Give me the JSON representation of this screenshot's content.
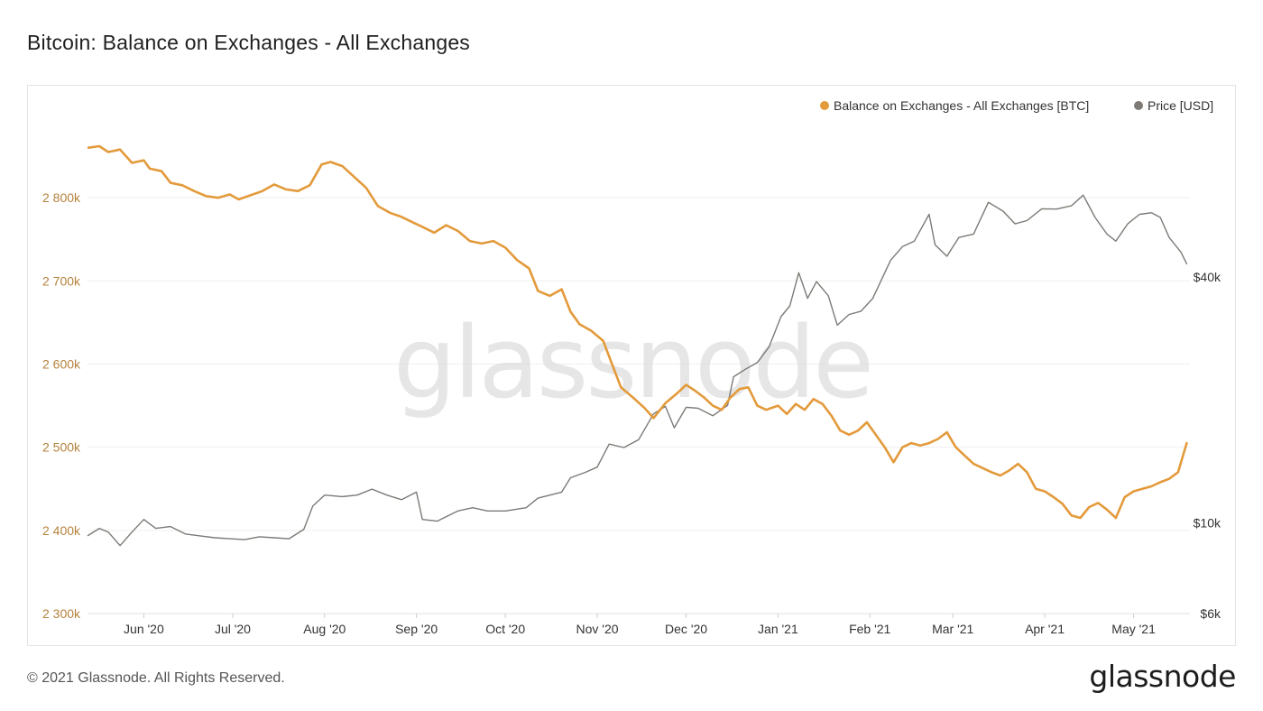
{
  "title": "Bitcoin: Balance on Exchanges - All Exchanges",
  "footer": {
    "copyright": "© 2021 Glassnode. All Rights Reserved.",
    "logo": "glassnode"
  },
  "watermark": "glassnode",
  "colors": {
    "balance": "#e39a3b",
    "price": "#7d7a76",
    "left_axis_text": "#b5823d",
    "grid": "#efefef"
  },
  "chart_data": {
    "type": "line",
    "title": "Bitcoin: Balance on Exchanges - All Exchanges",
    "x_range": [
      "2020-05-13",
      "2021-05-20"
    ],
    "x_ticks": [
      {
        "date": "2020-06-01",
        "label": "Jun '20"
      },
      {
        "date": "2020-07-01",
        "label": "Jul '20"
      },
      {
        "date": "2020-08-01",
        "label": "Aug '20"
      },
      {
        "date": "2020-09-01",
        "label": "Sep '20"
      },
      {
        "date": "2020-10-01",
        "label": "Oct '20"
      },
      {
        "date": "2020-11-01",
        "label": "Nov '20"
      },
      {
        "date": "2020-12-01",
        "label": "Dec '20"
      },
      {
        "date": "2021-01-01",
        "label": "Jan '21"
      },
      {
        "date": "2021-02-01",
        "label": "Feb '21"
      },
      {
        "date": "2021-03-01",
        "label": "Mar '21"
      },
      {
        "date": "2021-04-01",
        "label": "Apr '21"
      },
      {
        "date": "2021-05-01",
        "label": "May '21"
      }
    ],
    "y_left": {
      "range": [
        2300000,
        2900000
      ],
      "ticks": [
        {
          "value": 2300000,
          "label": "2 300k"
        },
        {
          "value": 2400000,
          "label": "2 400k"
        },
        {
          "value": 2500000,
          "label": "2 500k"
        },
        {
          "value": 2600000,
          "label": "2 600k"
        },
        {
          "value": 2700000,
          "label": "2 700k"
        },
        {
          "value": 2800000,
          "label": "2 800k"
        }
      ]
    },
    "y_right": {
      "scale": "log",
      "range": [
        6000,
        100000
      ],
      "ticks": [
        {
          "value": 6000,
          "label": "$6k"
        },
        {
          "value": 10000,
          "label": "$10k"
        },
        {
          "value": 40000,
          "label": "$40k"
        }
      ]
    },
    "grid": true,
    "legend": "top-right",
    "series": [
      {
        "name": "Balance on Exchanges - All Exchanges [BTC]",
        "axis": "left",
        "points": [
          [
            "2020-05-13",
            2860000
          ],
          [
            "2020-05-17",
            2862000
          ],
          [
            "2020-05-20",
            2855000
          ],
          [
            "2020-05-24",
            2858000
          ],
          [
            "2020-05-28",
            2842000
          ],
          [
            "2020-06-01",
            2845000
          ],
          [
            "2020-06-03",
            2835000
          ],
          [
            "2020-06-07",
            2832000
          ],
          [
            "2020-06-10",
            2818000
          ],
          [
            "2020-06-14",
            2815000
          ],
          [
            "2020-06-18",
            2808000
          ],
          [
            "2020-06-22",
            2802000
          ],
          [
            "2020-06-26",
            2800000
          ],
          [
            "2020-06-30",
            2804000
          ],
          [
            "2020-07-03",
            2798000
          ],
          [
            "2020-07-07",
            2803000
          ],
          [
            "2020-07-11",
            2808000
          ],
          [
            "2020-07-15",
            2816000
          ],
          [
            "2020-07-19",
            2810000
          ],
          [
            "2020-07-23",
            2808000
          ],
          [
            "2020-07-27",
            2815000
          ],
          [
            "2020-07-31",
            2840000
          ],
          [
            "2020-08-03",
            2843000
          ],
          [
            "2020-08-07",
            2838000
          ],
          [
            "2020-08-11",
            2825000
          ],
          [
            "2020-08-15",
            2812000
          ],
          [
            "2020-08-19",
            2790000
          ],
          [
            "2020-08-23",
            2782000
          ],
          [
            "2020-08-27",
            2777000
          ],
          [
            "2020-08-31",
            2770000
          ],
          [
            "2020-09-03",
            2765000
          ],
          [
            "2020-09-07",
            2758000
          ],
          [
            "2020-09-11",
            2767000
          ],
          [
            "2020-09-15",
            2760000
          ],
          [
            "2020-09-19",
            2748000
          ],
          [
            "2020-09-23",
            2745000
          ],
          [
            "2020-09-27",
            2748000
          ],
          [
            "2020-10-01",
            2740000
          ],
          [
            "2020-10-05",
            2725000
          ],
          [
            "2020-10-09",
            2715000
          ],
          [
            "2020-10-12",
            2688000
          ],
          [
            "2020-10-16",
            2682000
          ],
          [
            "2020-10-20",
            2690000
          ],
          [
            "2020-10-23",
            2663000
          ],
          [
            "2020-10-26",
            2648000
          ],
          [
            "2020-10-30",
            2640000
          ],
          [
            "2020-11-03",
            2628000
          ],
          [
            "2020-11-06",
            2600000
          ],
          [
            "2020-11-09",
            2572000
          ],
          [
            "2020-11-13",
            2560000
          ],
          [
            "2020-11-17",
            2547000
          ],
          [
            "2020-11-20",
            2535000
          ],
          [
            "2020-11-24",
            2553000
          ],
          [
            "2020-11-28",
            2565000
          ],
          [
            "2020-12-01",
            2575000
          ],
          [
            "2020-12-04",
            2568000
          ],
          [
            "2020-12-07",
            2560000
          ],
          [
            "2020-12-10",
            2550000
          ],
          [
            "2020-12-13",
            2545000
          ],
          [
            "2020-12-16",
            2560000
          ],
          [
            "2020-12-19",
            2570000
          ],
          [
            "2020-12-22",
            2572000
          ],
          [
            "2020-12-25",
            2550000
          ],
          [
            "2020-12-28",
            2545000
          ],
          [
            "2021-01-01",
            2550000
          ],
          [
            "2021-01-04",
            2540000
          ],
          [
            "2021-01-07",
            2552000
          ],
          [
            "2021-01-10",
            2545000
          ],
          [
            "2021-01-13",
            2558000
          ],
          [
            "2021-01-16",
            2552000
          ],
          [
            "2021-01-19",
            2538000
          ],
          [
            "2021-01-22",
            2520000
          ],
          [
            "2021-01-25",
            2515000
          ],
          [
            "2021-01-28",
            2520000
          ],
          [
            "2021-01-31",
            2530000
          ],
          [
            "2021-02-03",
            2515000
          ],
          [
            "2021-02-06",
            2500000
          ],
          [
            "2021-02-09",
            2482000
          ],
          [
            "2021-02-12",
            2500000
          ],
          [
            "2021-02-15",
            2505000
          ],
          [
            "2021-02-18",
            2502000
          ],
          [
            "2021-02-21",
            2505000
          ],
          [
            "2021-02-24",
            2510000
          ],
          [
            "2021-02-27",
            2518000
          ],
          [
            "2021-03-02",
            2500000
          ],
          [
            "2021-03-05",
            2490000
          ],
          [
            "2021-03-08",
            2480000
          ],
          [
            "2021-03-11",
            2475000
          ],
          [
            "2021-03-14",
            2470000
          ],
          [
            "2021-03-17",
            2466000
          ],
          [
            "2021-03-20",
            2472000
          ],
          [
            "2021-03-23",
            2480000
          ],
          [
            "2021-03-26",
            2470000
          ],
          [
            "2021-03-29",
            2450000
          ],
          [
            "2021-04-01",
            2447000
          ],
          [
            "2021-04-04",
            2440000
          ],
          [
            "2021-04-07",
            2432000
          ],
          [
            "2021-04-10",
            2418000
          ],
          [
            "2021-04-13",
            2415000
          ],
          [
            "2021-04-16",
            2428000
          ],
          [
            "2021-04-19",
            2433000
          ],
          [
            "2021-04-22",
            2425000
          ],
          [
            "2021-04-25",
            2415000
          ],
          [
            "2021-04-28",
            2440000
          ],
          [
            "2021-05-01",
            2447000
          ],
          [
            "2021-05-04",
            2450000
          ],
          [
            "2021-05-07",
            2453000
          ],
          [
            "2021-05-10",
            2458000
          ],
          [
            "2021-05-13",
            2462000
          ],
          [
            "2021-05-16",
            2470000
          ],
          [
            "2021-05-19",
            2506000
          ]
        ]
      },
      {
        "name": "Price [USD]",
        "axis": "right",
        "points": [
          [
            "2020-05-13",
            9300
          ],
          [
            "2020-05-17",
            9700
          ],
          [
            "2020-05-20",
            9500
          ],
          [
            "2020-05-24",
            8800
          ],
          [
            "2020-05-28",
            9500
          ],
          [
            "2020-06-01",
            10200
          ],
          [
            "2020-06-05",
            9700
          ],
          [
            "2020-06-10",
            9800
          ],
          [
            "2020-06-15",
            9400
          ],
          [
            "2020-06-20",
            9300
          ],
          [
            "2020-06-25",
            9200
          ],
          [
            "2020-06-30",
            9150
          ],
          [
            "2020-07-05",
            9100
          ],
          [
            "2020-07-10",
            9250
          ],
          [
            "2020-07-15",
            9200
          ],
          [
            "2020-07-20",
            9150
          ],
          [
            "2020-07-25",
            9650
          ],
          [
            "2020-07-28",
            11000
          ],
          [
            "2020-08-01",
            11700
          ],
          [
            "2020-08-07",
            11600
          ],
          [
            "2020-08-12",
            11700
          ],
          [
            "2020-08-17",
            12100
          ],
          [
            "2020-08-22",
            11700
          ],
          [
            "2020-08-27",
            11400
          ],
          [
            "2020-09-01",
            11900
          ],
          [
            "2020-09-03",
            10200
          ],
          [
            "2020-09-08",
            10100
          ],
          [
            "2020-09-15",
            10700
          ],
          [
            "2020-09-20",
            10900
          ],
          [
            "2020-09-25",
            10700
          ],
          [
            "2020-10-01",
            10700
          ],
          [
            "2020-10-08",
            10900
          ],
          [
            "2020-10-12",
            11500
          ],
          [
            "2020-10-20",
            11900
          ],
          [
            "2020-10-23",
            12900
          ],
          [
            "2020-10-28",
            13300
          ],
          [
            "2020-11-01",
            13700
          ],
          [
            "2020-11-05",
            15600
          ],
          [
            "2020-11-10",
            15300
          ],
          [
            "2020-11-15",
            16000
          ],
          [
            "2020-11-20",
            18500
          ],
          [
            "2020-11-24",
            19300
          ],
          [
            "2020-11-27",
            17100
          ],
          [
            "2020-12-01",
            19200
          ],
          [
            "2020-12-05",
            19100
          ],
          [
            "2020-12-10",
            18300
          ],
          [
            "2020-12-15",
            19400
          ],
          [
            "2020-12-17",
            22800
          ],
          [
            "2020-12-21",
            23800
          ],
          [
            "2020-12-25",
            24700
          ],
          [
            "2020-12-29",
            27000
          ],
          [
            "2021-01-02",
            32000
          ],
          [
            "2021-01-05",
            34000
          ],
          [
            "2021-01-08",
            41000
          ],
          [
            "2021-01-11",
            35500
          ],
          [
            "2021-01-14",
            39000
          ],
          [
            "2021-01-18",
            36000
          ],
          [
            "2021-01-21",
            30500
          ],
          [
            "2021-01-25",
            32400
          ],
          [
            "2021-01-29",
            33000
          ],
          [
            "2021-02-02",
            35500
          ],
          [
            "2021-02-08",
            44000
          ],
          [
            "2021-02-12",
            47500
          ],
          [
            "2021-02-16",
            49000
          ],
          [
            "2021-02-21",
            57000
          ],
          [
            "2021-02-23",
            48000
          ],
          [
            "2021-02-27",
            45000
          ],
          [
            "2021-03-03",
            50000
          ],
          [
            "2021-03-08",
            51000
          ],
          [
            "2021-03-13",
            61000
          ],
          [
            "2021-03-18",
            58000
          ],
          [
            "2021-03-22",
            54000
          ],
          [
            "2021-03-26",
            55000
          ],
          [
            "2021-03-31",
            58800
          ],
          [
            "2021-04-05",
            58700
          ],
          [
            "2021-04-10",
            59800
          ],
          [
            "2021-04-14",
            63500
          ],
          [
            "2021-04-18",
            56000
          ],
          [
            "2021-04-22",
            51000
          ],
          [
            "2021-04-25",
            49000
          ],
          [
            "2021-04-29",
            54000
          ],
          [
            "2021-05-03",
            57000
          ],
          [
            "2021-05-07",
            57500
          ],
          [
            "2021-05-10",
            56000
          ],
          [
            "2021-05-13",
            50000
          ],
          [
            "2021-05-17",
            46000
          ],
          [
            "2021-05-19",
            43000
          ]
        ]
      }
    ]
  }
}
